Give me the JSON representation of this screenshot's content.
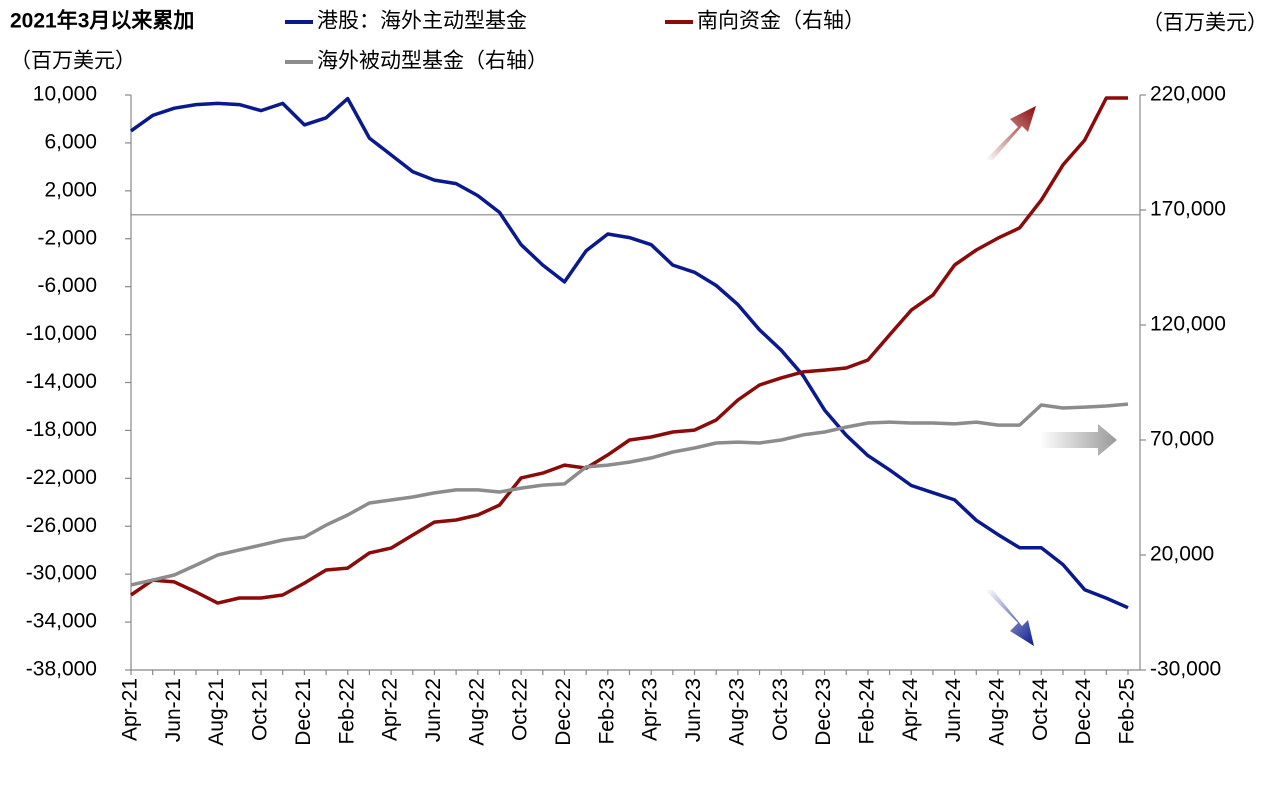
{
  "chart_data": {
    "type": "line",
    "title": "2021年3月以来累加",
    "y_label": "（百万美元）",
    "y2_label": "（百万美元）",
    "categories": [
      "Apr-21",
      null,
      "Jun-21",
      null,
      "Aug-21",
      null,
      "Oct-21",
      null,
      "Dec-21",
      null,
      "Feb-22",
      null,
      "Apr-22",
      null,
      "Jun-22",
      null,
      "Aug-22",
      null,
      "Oct-22",
      null,
      "Dec-22",
      null,
      "Feb-23",
      null,
      "Apr-23",
      null,
      "Jun-23",
      null,
      "Aug-23",
      null,
      "Oct-23",
      null,
      "Dec-23",
      null,
      "Feb-24",
      null,
      "Apr-24",
      null,
      "Jun-24",
      null,
      "Aug-24",
      null,
      "Oct-24",
      null,
      "Dec-24",
      null,
      "Feb-25"
    ],
    "series": [
      {
        "name": "港股：海外主动型基金",
        "color": "#0a1a8c",
        "axis": "y",
        "values": [
          7000,
          8300,
          8900,
          9200,
          9300,
          9200,
          8700,
          9300,
          7500,
          8100,
          9700,
          6400,
          5000,
          3600,
          2900,
          2600,
          1600,
          200,
          -2500,
          -4200,
          -5600,
          -3000,
          -1600,
          -1900,
          -2500,
          -4200,
          -4800,
          -5900,
          -7500,
          -9600,
          -11300,
          -13400,
          -16300,
          -18400,
          -20100,
          -21300,
          -22600,
          -23200,
          -23800,
          -25500,
          -26700,
          -27800,
          -27800,
          -29200,
          -31300,
          -32000,
          -32800
        ]
      },
      {
        "name": "南向资金（右轴）",
        "color": "#8b0a0a",
        "axis": "y2",
        "values": [
          2600,
          9100,
          8300,
          3900,
          -900,
          1300,
          1300,
          2600,
          7800,
          13500,
          14300,
          20900,
          23000,
          28700,
          34300,
          35200,
          37400,
          41700,
          53500,
          55600,
          59100,
          57800,
          63500,
          70000,
          71300,
          73500,
          74300,
          78700,
          87400,
          93900,
          97000,
          99600,
          100400,
          101300,
          104800,
          115700,
          126500,
          133000,
          146100,
          152600,
          157800,
          162200,
          174300,
          189600,
          200400,
          218700,
          218700
        ]
      },
      {
        "name": "海外被动型基金（右轴）",
        "color": "#8c8c8c",
        "axis": "y2",
        "values": [
          7000,
          9100,
          11300,
          15600,
          20000,
          22200,
          24300,
          26500,
          27800,
          33000,
          37400,
          42600,
          43900,
          45200,
          47000,
          48300,
          48300,
          47400,
          49100,
          50400,
          50900,
          58300,
          59100,
          60400,
          62200,
          64800,
          66500,
          68700,
          69100,
          68700,
          70000,
          72200,
          73500,
          75600,
          77400,
          77800,
          77400,
          77400,
          77000,
          77800,
          76500,
          76500,
          85200,
          83900,
          84300,
          84800,
          85600
        ]
      }
    ],
    "ylim": [
      -38000,
      10000
    ],
    "yticks": [
      {
        "value": 10000,
        "label": "10,000"
      },
      {
        "value": 6000,
        "label": "6,000"
      },
      {
        "value": 2000,
        "label": "2,000"
      },
      {
        "value": -2000,
        "label": "-2,000"
      },
      {
        "value": -6000,
        "label": "-6,000"
      },
      {
        "value": -10000,
        "label": "-10,000"
      },
      {
        "value": -14000,
        "label": "-14,000"
      },
      {
        "value": -18000,
        "label": "-18,000"
      },
      {
        "value": -22000,
        "label": "-22,000"
      },
      {
        "value": -26000,
        "label": "-26,000"
      },
      {
        "value": -30000,
        "label": "-30,000"
      },
      {
        "value": -34000,
        "label": "-34,000"
      },
      {
        "value": -38000,
        "label": "-38,000"
      }
    ],
    "y2lim": [
      -30000,
      220000
    ],
    "y2ticks": [
      {
        "value": 220000,
        "label": "220,000"
      },
      {
        "value": 170000,
        "label": "170,000"
      },
      {
        "value": 120000,
        "label": "120,000"
      },
      {
        "value": 70000,
        "label": "70,000"
      },
      {
        "value": 20000,
        "label": "20,000"
      },
      {
        "value": -30000,
        "label": "-30,000"
      }
    ],
    "negative_tick_color": "#e00000",
    "grid": false
  }
}
